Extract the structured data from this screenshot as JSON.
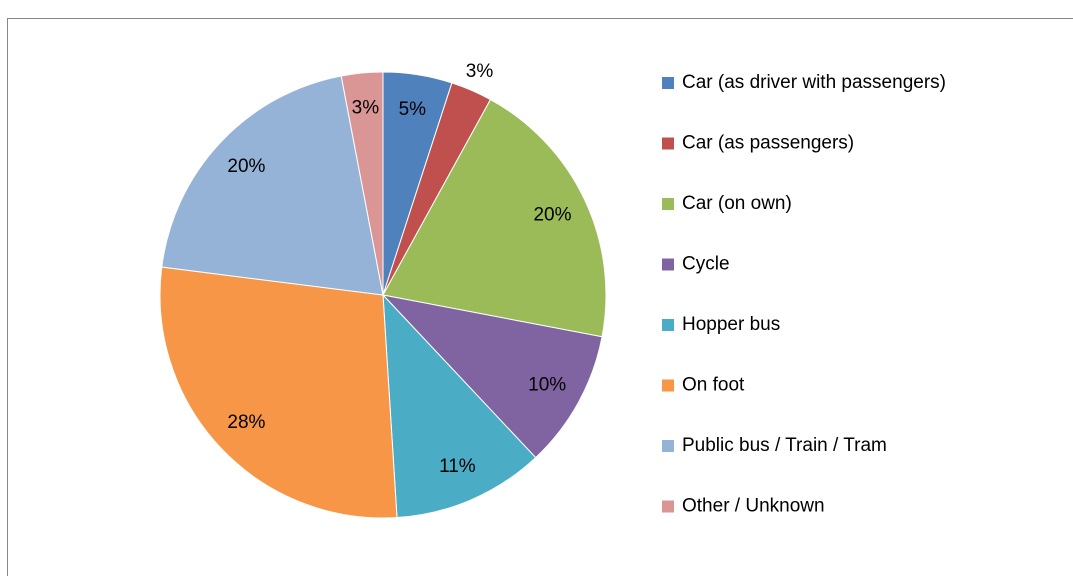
{
  "chart_data": {
    "type": "pie",
    "categories": [
      "Car (as driver with passengers)",
      "Car (as passengers)",
      "Car (on own)",
      "Cycle",
      "Hopper bus",
      "On foot",
      "Public bus / Train / Tram",
      "Other / Unknown"
    ],
    "values": [
      5,
      3,
      20,
      10,
      11,
      28,
      20,
      3
    ],
    "value_labels": [
      "5%",
      "3%",
      "20%",
      "10%",
      "11%",
      "28%",
      "20%",
      "3%"
    ],
    "colors": [
      "#4f81bd",
      "#c0504d",
      "#9bbb59",
      "#8064a2",
      "#4bacc6",
      "#f79646",
      "#95b3d7",
      "#da9694"
    ],
    "legend": "right"
  }
}
